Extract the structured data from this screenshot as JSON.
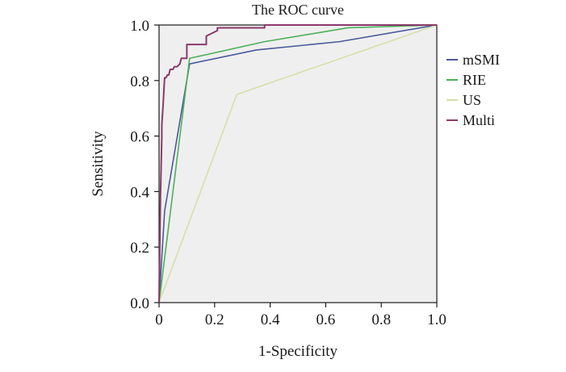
{
  "chart_data": {
    "type": "line",
    "title": "The ROC curve",
    "xlabel": "1-Specificity",
    "ylabel": "Sensitivity",
    "xlim": [
      0,
      1
    ],
    "ylim": [
      0,
      1
    ],
    "xticks": [
      "0",
      "0.2",
      "0.4",
      "0.6",
      "0.8",
      "1.0"
    ],
    "yticks": [
      "0.0",
      "0.2",
      "0.4",
      "0.6",
      "0.8",
      "1.0"
    ],
    "grid": false,
    "legend_position": "right",
    "plot_background": "#efefef",
    "series": [
      {
        "name": "mSMI",
        "color": "#4a5a9a",
        "x": [
          0,
          0.02,
          0.11,
          0.35,
          0.65,
          1.0
        ],
        "y": [
          0,
          0.33,
          0.86,
          0.91,
          0.94,
          1.0
        ]
      },
      {
        "name": "RIE",
        "color": "#4caf5a",
        "x": [
          0,
          0.11,
          0.38,
          0.68,
          1.0
        ],
        "y": [
          0,
          0.88,
          0.94,
          0.99,
          1.0
        ]
      },
      {
        "name": "US",
        "color": "#d6dfa8",
        "x": [
          0,
          0.28,
          1.0
        ],
        "y": [
          0,
          0.75,
          1.0
        ]
      },
      {
        "name": "Multi",
        "color": "#8a3a6a",
        "x": [
          0,
          0.005,
          0.01,
          0.01,
          0.015,
          0.02,
          0.025,
          0.03,
          0.035,
          0.04,
          0.05,
          0.055,
          0.065,
          0.075,
          0.08,
          0.1,
          0.1,
          0.17,
          0.17,
          0.21,
          0.21,
          0.38,
          0.38,
          1.0
        ],
        "y": [
          0,
          0.38,
          0.6,
          0.64,
          0.72,
          0.81,
          0.81,
          0.82,
          0.82,
          0.84,
          0.84,
          0.85,
          0.85,
          0.86,
          0.88,
          0.88,
          0.93,
          0.93,
          0.96,
          0.98,
          0.99,
          0.99,
          1.0,
          1.0
        ]
      }
    ]
  }
}
